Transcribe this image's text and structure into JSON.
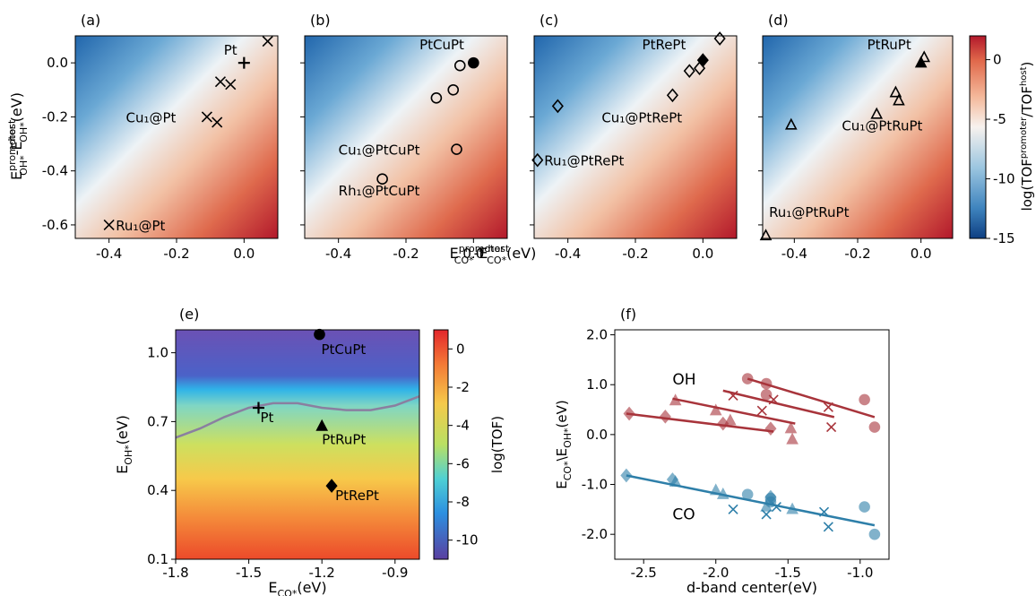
{
  "figure": {
    "shared_xlabel": {
      "main": "E",
      "sup1": "promoter",
      "sub1": "CO*",
      "mid": "-E",
      "sup2": "host",
      "sub2": "CO*",
      "unit": "(eV)"
    },
    "shared_ylabel": {
      "main": "E",
      "sup1": "promoter",
      "sub1": "OH*",
      "mid": "-E",
      "sup2": "host",
      "sub2": "OH*",
      "unit": "(eV)"
    },
    "top_colorbar": {
      "label": "log(TOF",
      "sup1": "promoter",
      "mid": "/TOF",
      "sup2": "host",
      "end": ")",
      "ticks": [
        "0",
        "-5",
        "-10",
        "-15"
      ],
      "values": [
        0,
        -5,
        -10,
        -15
      ],
      "range": [
        -15,
        2
      ]
    },
    "e_colorbar": {
      "label": "log(TOF)",
      "ticks": [
        "0",
        "-2",
        "-4",
        "-6",
        "-8",
        "-10"
      ],
      "values": [
        0,
        -2,
        -4,
        -6,
        -8,
        -10
      ],
      "range": [
        -11,
        1
      ]
    }
  },
  "chart_data": [
    {
      "type": "scatter",
      "panel": "(a)",
      "xlim": [
        -0.5,
        0.1
      ],
      "ylim": [
        -0.65,
        0.1
      ],
      "xticks": [
        -0.4,
        -0.2,
        0.0
      ],
      "xtick_labels": [
        "-0.4",
        "-0.2",
        "0.0"
      ],
      "yticks": [
        0.0,
        -0.2,
        -0.4,
        -0.6
      ],
      "ytick_labels": [
        "0.0",
        "-0.2",
        "-0.4",
        "-0.6"
      ],
      "series": [
        {
          "marker": "x",
          "points": [
            [
              -0.4,
              -0.6
            ],
            [
              -0.11,
              -0.2
            ],
            [
              -0.08,
              -0.22
            ],
            [
              -0.07,
              -0.07
            ],
            [
              -0.04,
              -0.08
            ],
            [
              0.07,
              0.08
            ]
          ]
        },
        {
          "marker": "plus",
          "points": [
            [
              0.0,
              0.0
            ]
          ]
        }
      ],
      "annotations": [
        {
          "text": "Pt",
          "x": -0.06,
          "y": 0.03
        },
        {
          "text": "Cu₁@Pt",
          "x": -0.35,
          "y": -0.22
        },
        {
          "text": "Ru₁@Pt",
          "x": -0.38,
          "y": -0.62
        }
      ]
    },
    {
      "type": "scatter",
      "panel": "(b)",
      "xlim": [
        -0.5,
        0.1
      ],
      "ylim": [
        -0.65,
        0.1
      ],
      "xticks": [
        -0.4,
        -0.2,
        0.0
      ],
      "xtick_labels": [
        "-0.4",
        "-0.2",
        "0.0"
      ],
      "yticks": [
        0.0,
        -0.2,
        -0.4,
        -0.6
      ],
      "ytick_labels": [],
      "series": [
        {
          "marker": "circle-open",
          "points": [
            [
              -0.27,
              -0.43
            ],
            [
              -0.05,
              -0.32
            ],
            [
              -0.11,
              -0.13
            ],
            [
              -0.06,
              -0.1
            ],
            [
              -0.04,
              -0.01
            ]
          ]
        },
        {
          "marker": "circle-filled",
          "points": [
            [
              0.0,
              0.0
            ]
          ]
        }
      ],
      "annotations": [
        {
          "text": "PtCuPt",
          "x": -0.16,
          "y": 0.05
        },
        {
          "text": "Cu₁@PtCuPt",
          "x": -0.4,
          "y": -0.34
        },
        {
          "text": "Rh₁@PtCuPt",
          "x": -0.4,
          "y": -0.49
        }
      ]
    },
    {
      "type": "scatter",
      "panel": "(c)",
      "xlim": [
        -0.5,
        0.1
      ],
      "ylim": [
        -0.65,
        0.1
      ],
      "xticks": [
        -0.4,
        -0.2,
        0.0
      ],
      "xtick_labels": [
        "-0.4",
        "-0.2",
        "0.0"
      ],
      "yticks": [
        0.0,
        -0.2,
        -0.4,
        -0.6
      ],
      "ytick_labels": [],
      "series": [
        {
          "marker": "diamond-open",
          "points": [
            [
              -0.49,
              -0.36
            ],
            [
              -0.43,
              -0.16
            ],
            [
              -0.09,
              -0.12
            ],
            [
              -0.04,
              -0.03
            ],
            [
              -0.01,
              -0.02
            ],
            [
              0.05,
              0.09
            ]
          ]
        },
        {
          "marker": "diamond-filled",
          "points": [
            [
              0.0,
              0.01
            ]
          ]
        }
      ],
      "annotations": [
        {
          "text": "PtRePt",
          "x": -0.18,
          "y": 0.05
        },
        {
          "text": "Cu₁@PtRePt",
          "x": -0.3,
          "y": -0.22
        },
        {
          "text": "Ru₁@PtRePt",
          "x": -0.47,
          "y": -0.38
        }
      ]
    },
    {
      "type": "scatter",
      "panel": "(d)",
      "xlim": [
        -0.5,
        0.1
      ],
      "ylim": [
        -0.65,
        0.1
      ],
      "xticks": [
        -0.4,
        -0.2,
        0.0
      ],
      "xtick_labels": [
        "-0.4",
        "-0.2",
        "0.0"
      ],
      "yticks": [
        0.0,
        -0.2,
        -0.4,
        -0.6
      ],
      "ytick_labels": [],
      "series": [
        {
          "marker": "triangle-open",
          "points": [
            [
              -0.49,
              -0.64
            ],
            [
              -0.41,
              -0.23
            ],
            [
              -0.14,
              -0.19
            ],
            [
              -0.08,
              -0.11
            ],
            [
              -0.07,
              -0.14
            ],
            [
              0.01,
              0.02
            ]
          ]
        },
        {
          "marker": "triangle-filled",
          "points": [
            [
              0.0,
              0.0
            ]
          ]
        }
      ],
      "annotations": [
        {
          "text": "PtRuPt",
          "x": -0.17,
          "y": 0.05
        },
        {
          "text": "Cu₁@PtRuPt",
          "x": -0.25,
          "y": -0.25
        },
        {
          "text": "Ru₁@PtRuPt",
          "x": -0.48,
          "y": -0.57
        }
      ]
    },
    {
      "type": "heatmap",
      "panel": "(e)",
      "xlabel": {
        "main": "E",
        "sub": "CO*",
        "unit": "(eV)"
      },
      "ylabel": {
        "main": "E",
        "sub": "OH*",
        "unit": "(eV)"
      },
      "xlim": [
        -1.8,
        -0.8
      ],
      "ylim": [
        0.1,
        1.1
      ],
      "xticks": [
        -1.8,
        -1.5,
        -1.2,
        -0.9
      ],
      "xtick_labels": [
        "-1.8",
        "-1.5",
        "-1.2",
        "-0.9"
      ],
      "yticks": [
        0.1,
        0.4,
        0.7,
        1.0
      ],
      "ytick_labels": [
        "0.1",
        "0.4",
        "0.7",
        "1.0"
      ],
      "points": [
        {
          "marker": "plus",
          "x": -1.46,
          "y": 0.76,
          "label": "Pt"
        },
        {
          "marker": "circle-filled",
          "x": -1.21,
          "y": 1.08,
          "label": "PtCuPt"
        },
        {
          "marker": "triangle-filled",
          "x": -1.2,
          "y": 0.68,
          "label": "PtRuPt"
        },
        {
          "marker": "diamond-filled",
          "x": -1.16,
          "y": 0.42,
          "label": "PtRePt"
        }
      ],
      "contour": {
        "x": [
          -1.8,
          -1.7,
          -1.6,
          -1.5,
          -1.4,
          -1.3,
          -1.2,
          -1.1,
          -1.0,
          -0.9,
          -0.8
        ],
        "y": [
          0.63,
          0.67,
          0.72,
          0.76,
          0.78,
          0.78,
          0.76,
          0.75,
          0.75,
          0.77,
          0.81
        ]
      }
    },
    {
      "type": "scatter",
      "panel": "(f)",
      "xlabel": "d-band center(eV)",
      "ylabel": {
        "p1": "E",
        "s1": "CO*",
        "mid": "\\E",
        "s2": "OH*",
        "unit": "(eV)"
      },
      "xlim": [
        -2.7,
        -0.8
      ],
      "ylim": [
        -2.5,
        2.1
      ],
      "xticks": [
        -2.5,
        -2.0,
        -1.5,
        -1.0
      ],
      "xtick_labels": [
        "-2.5",
        "-2.0",
        "-1.5",
        "-1.0"
      ],
      "yticks": [
        2.0,
        1.0,
        0.0,
        -1.0,
        -2.0
      ],
      "ytick_labels": [
        "2.0",
        "1.0",
        "0.0",
        "-1.0",
        "-2.0"
      ],
      "colors": {
        "OH": "#a8343b",
        "CO": "#2e7fa9"
      },
      "groups": [
        {
          "name": "OH",
          "color": "OH",
          "label_pos": [
            -2.3,
            1.0
          ],
          "points": [
            {
              "m": "diamond",
              "x": -2.6,
              "y": 0.42
            },
            {
              "m": "diamond",
              "x": -2.35,
              "y": 0.36
            },
            {
              "m": "diamond",
              "x": -1.95,
              "y": 0.22
            },
            {
              "m": "diamond",
              "x": -1.62,
              "y": 0.12
            },
            {
              "m": "triangle",
              "x": -2.28,
              "y": 0.68
            },
            {
              "m": "triangle",
              "x": -2.0,
              "y": 0.48
            },
            {
              "m": "triangle",
              "x": -1.9,
              "y": 0.28
            },
            {
              "m": "triangle",
              "x": -1.47,
              "y": -0.1
            },
            {
              "m": "triangle",
              "x": -1.48,
              "y": 0.12
            },
            {
              "m": "x",
              "x": -1.88,
              "y": 0.78
            },
            {
              "m": "x",
              "x": -1.68,
              "y": 0.48
            },
            {
              "m": "x",
              "x": -1.6,
              "y": 0.7
            },
            {
              "m": "x",
              "x": -1.22,
              "y": 0.55
            },
            {
              "m": "x",
              "x": -1.2,
              "y": 0.15
            },
            {
              "m": "circle",
              "x": -1.78,
              "y": 1.12
            },
            {
              "m": "circle",
              "x": -1.65,
              "y": 1.02
            },
            {
              "m": "circle",
              "x": -1.65,
              "y": 0.8
            },
            {
              "m": "circle",
              "x": -0.97,
              "y": 0.7
            },
            {
              "m": "circle",
              "x": -0.9,
              "y": 0.15
            }
          ],
          "lines": [
            [
              [
                -2.62,
                0.42
              ],
              [
                -1.6,
                0.06
              ]
            ],
            [
              [
                -2.3,
                0.72
              ],
              [
                -1.45,
                0.22
              ]
            ],
            [
              [
                -1.95,
                0.88
              ],
              [
                -1.18,
                0.35
              ]
            ],
            [
              [
                -1.78,
                1.12
              ],
              [
                -0.9,
                0.35
              ]
            ]
          ]
        },
        {
          "name": "CO",
          "color": "CO",
          "label_pos": [
            -2.3,
            -1.7
          ],
          "points": [
            {
              "m": "diamond",
              "x": -2.62,
              "y": -0.82
            },
            {
              "m": "diamond",
              "x": -2.3,
              "y": -0.9
            },
            {
              "m": "diamond",
              "x": -1.62,
              "y": -1.25
            },
            {
              "m": "triangle",
              "x": -2.28,
              "y": -0.95
            },
            {
              "m": "triangle",
              "x": -2.0,
              "y": -1.12
            },
            {
              "m": "triangle",
              "x": -1.95,
              "y": -1.2
            },
            {
              "m": "triangle",
              "x": -1.65,
              "y": -1.45
            },
            {
              "m": "triangle",
              "x": -1.47,
              "y": -1.5
            },
            {
              "m": "x",
              "x": -1.88,
              "y": -1.5
            },
            {
              "m": "x",
              "x": -1.65,
              "y": -1.6
            },
            {
              "m": "x",
              "x": -1.58,
              "y": -1.45
            },
            {
              "m": "x",
              "x": -1.25,
              "y": -1.55
            },
            {
              "m": "x",
              "x": -1.22,
              "y": -1.85
            },
            {
              "m": "circle",
              "x": -1.78,
              "y": -1.2
            },
            {
              "m": "circle",
              "x": -1.62,
              "y": -1.28
            },
            {
              "m": "circle",
              "x": -1.62,
              "y": -1.35
            },
            {
              "m": "circle",
              "x": -0.97,
              "y": -1.45
            },
            {
              "m": "circle",
              "x": -0.9,
              "y": -2.0
            }
          ],
          "lines": [
            [
              [
                -2.62,
                -0.82
              ],
              [
                -0.9,
                -1.82
              ]
            ]
          ]
        }
      ]
    }
  ]
}
